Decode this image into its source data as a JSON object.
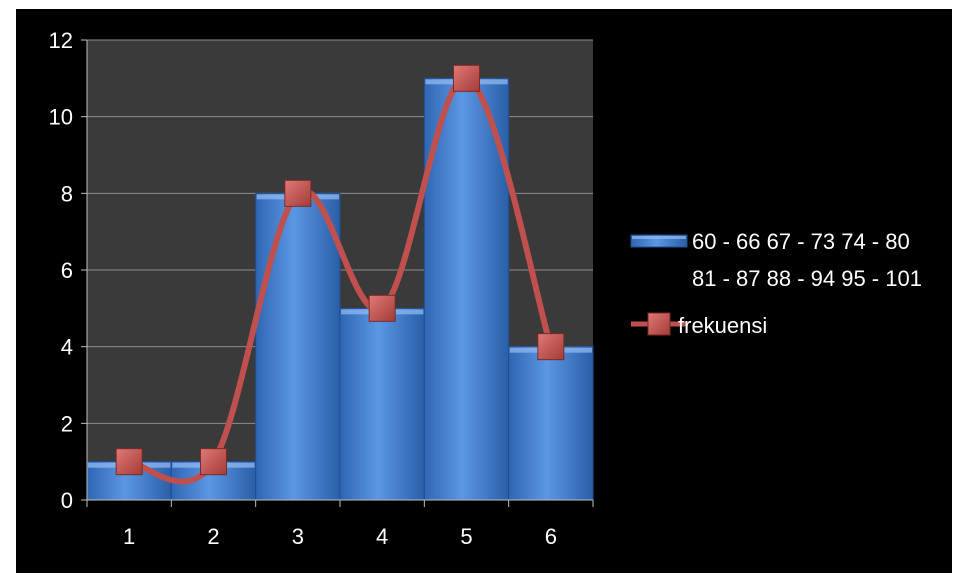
{
  "chart_data": {
    "type": "bar",
    "categories": [
      "1",
      "2",
      "3",
      "4",
      "5",
      "6"
    ],
    "series": [
      {
        "name": "60 - 66 67 - 73 74 - 80 81 - 87 88 - 94 95 - 101",
        "kind": "bar",
        "values": [
          1,
          1,
          8,
          5,
          11,
          4
        ],
        "color": "#4a86d6"
      },
      {
        "name": "frekuensi",
        "kind": "smoothed-line",
        "values": [
          1,
          1,
          8,
          5,
          11,
          4
        ],
        "color": "#c0504d"
      }
    ],
    "y_ticks": [
      "0",
      "2",
      "4",
      "6",
      "8",
      "10",
      "12"
    ],
    "ylim": [
      0,
      12
    ],
    "grid": true,
    "legend_position": "right",
    "legend": {
      "bar_label_line1": "60 - 66 67 - 73 74 - 80",
      "bar_label_line2": "81 - 87 88 - 94 95 - 101",
      "line_label": "frekuensi"
    },
    "colors": {
      "background": "#000000",
      "plot_area": "#3a3a3a",
      "grid": "#8c8c8c"
    }
  }
}
